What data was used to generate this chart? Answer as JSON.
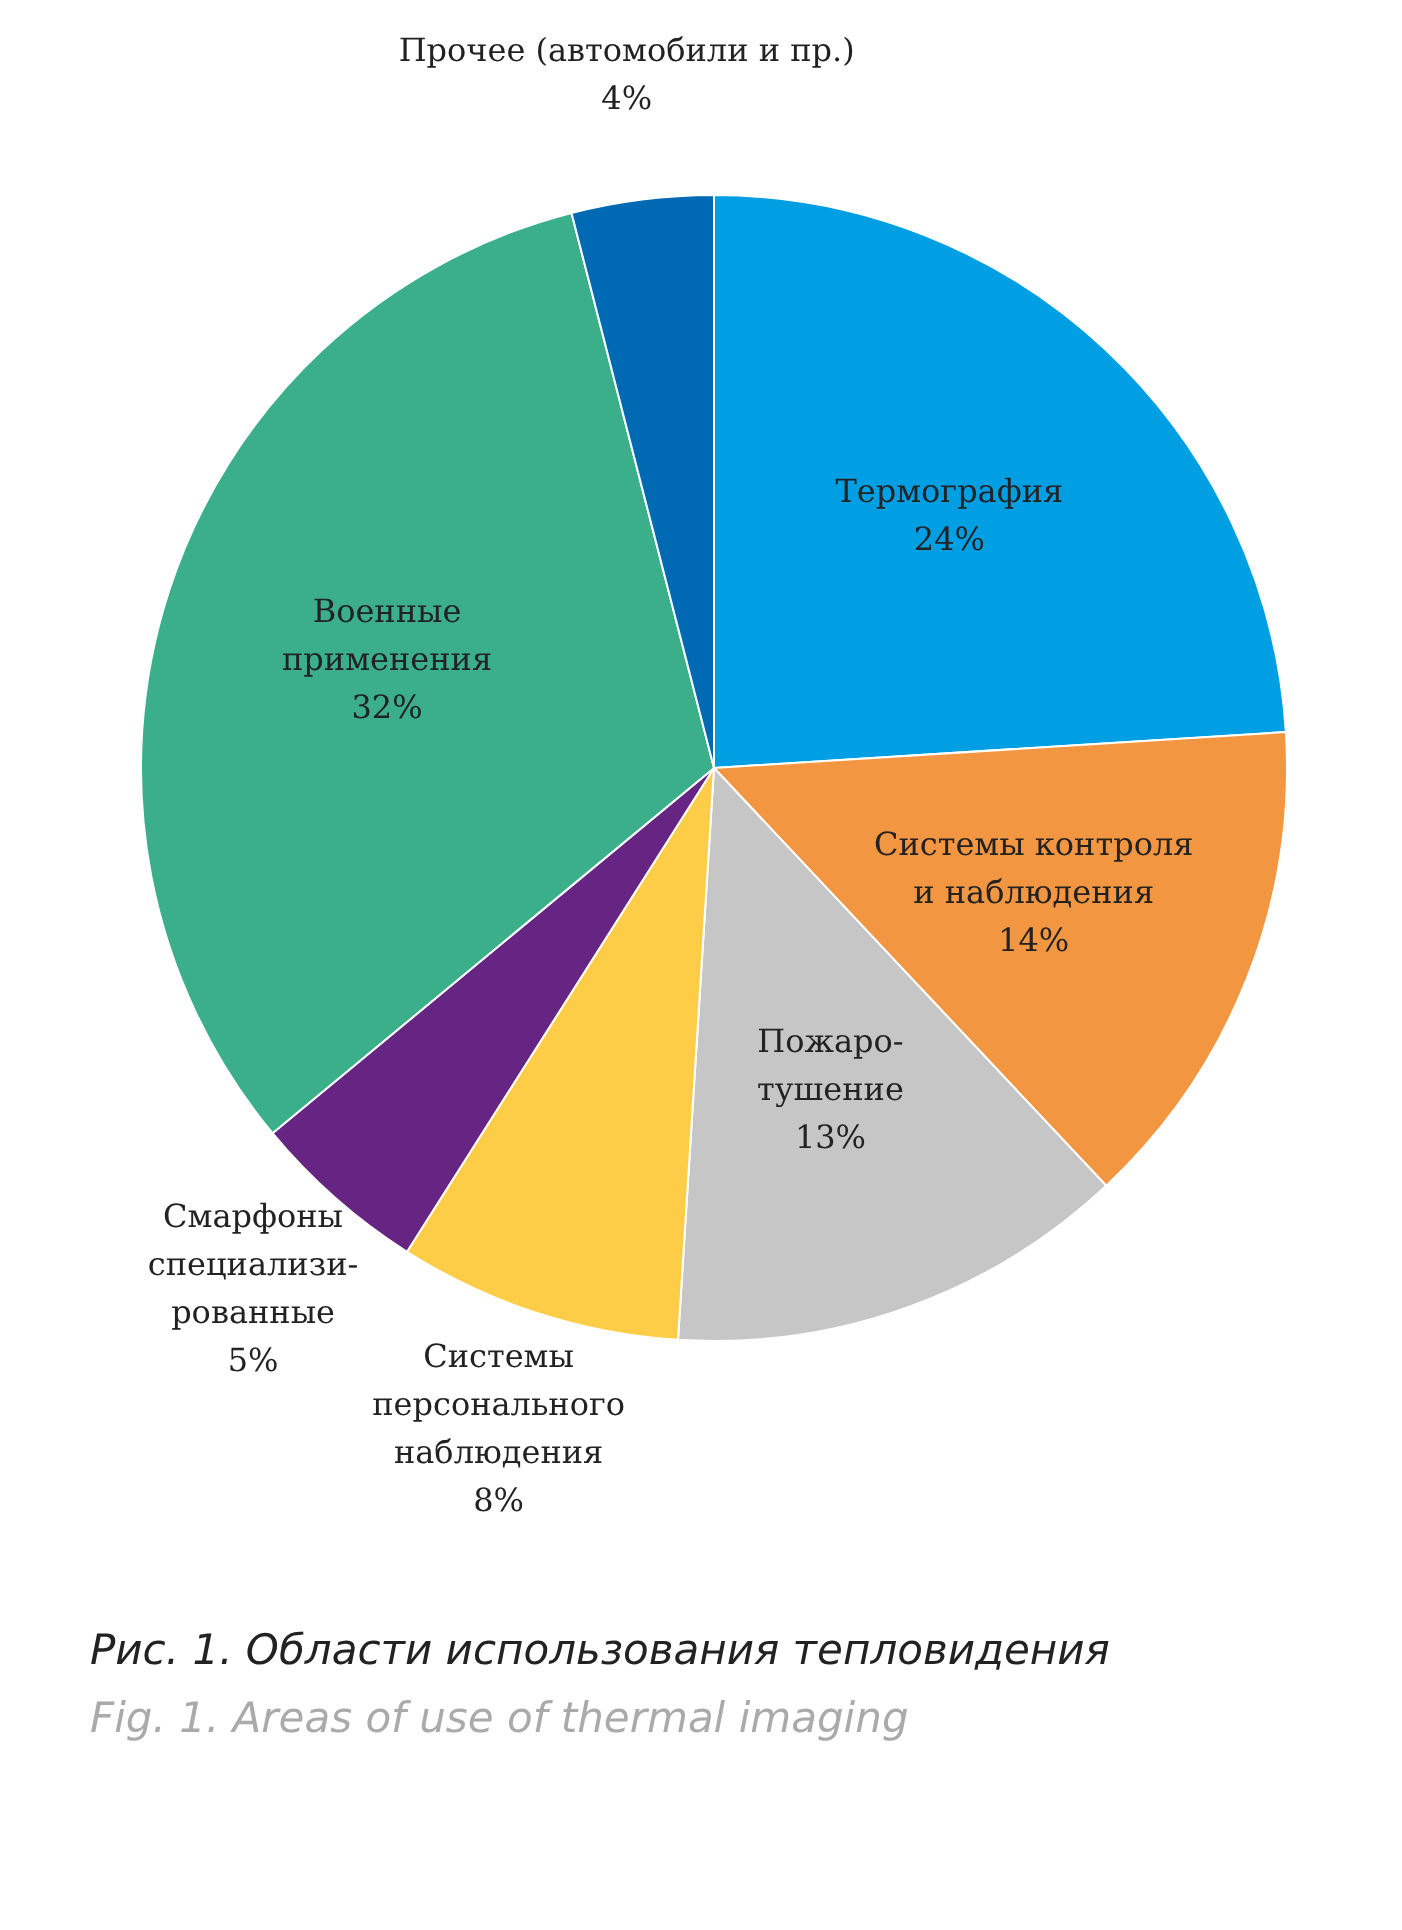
{
  "chart_data": {
    "type": "pie",
    "categories": [
      "Термография",
      "Системы контроля\nи наблюдения",
      "Пожаро-\nтушение",
      "Системы\nперсонального\nнаблюдения",
      "Смарфоны\nспециализи-\nрованные",
      "Военные\nприменения",
      "Прочее (автомобили и пр.)"
    ],
    "values": [
      24,
      14,
      13,
      8,
      5,
      32,
      4
    ],
    "value_labels": [
      "24%",
      "14%",
      "13%",
      "8%",
      "5%",
      "32%",
      "4%"
    ],
    "colors": [
      "#009fe3",
      "#f39641",
      "#c6c6c6",
      "#fecd48",
      "#662483",
      "#3aaf8a",
      "#0069b4"
    ],
    "legend": false,
    "annotations": [
      "Рис. 1. Области использования тепловидения",
      "Fig. 1. Areas of use of thermal imaging"
    ]
  }
}
